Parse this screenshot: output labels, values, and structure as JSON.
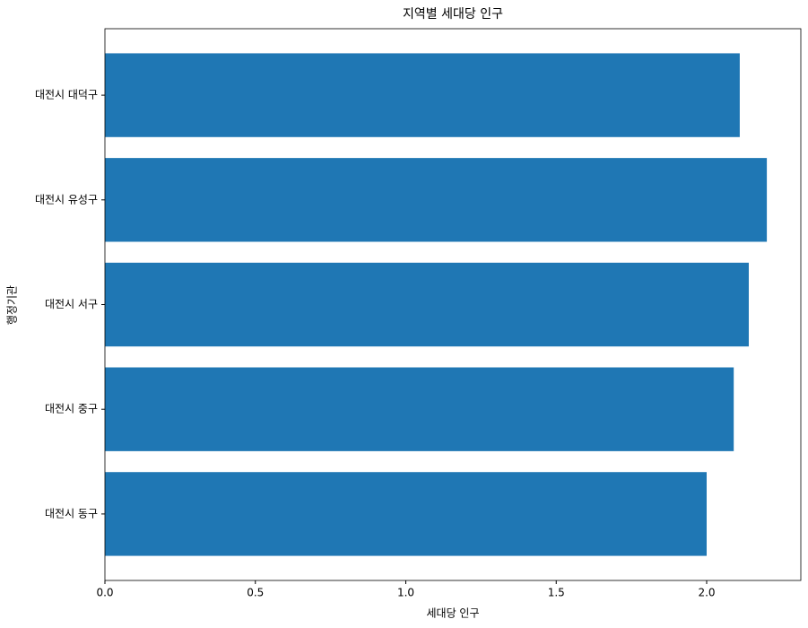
{
  "chart_data": {
    "type": "barh",
    "title": "지역별 세대당 인구",
    "xlabel": "세대당 인구",
    "ylabel": "행정기관",
    "categories": [
      "대전시 동구",
      "대전시 중구",
      "대전시 서구",
      "대전시 유성구",
      "대전시 대덕구"
    ],
    "values": [
      2.0,
      2.09,
      2.14,
      2.2,
      2.11
    ],
    "color": "#1f77b4",
    "xlim": [
      0,
      2.313
    ],
    "xticks": [
      {
        "value": 0,
        "label": "0.0"
      },
      0.5,
      {
        "value": 1,
        "label": "1.0"
      },
      1.5,
      {
        "value": 2,
        "label": "2.0"
      }
    ],
    "grid": false
  }
}
